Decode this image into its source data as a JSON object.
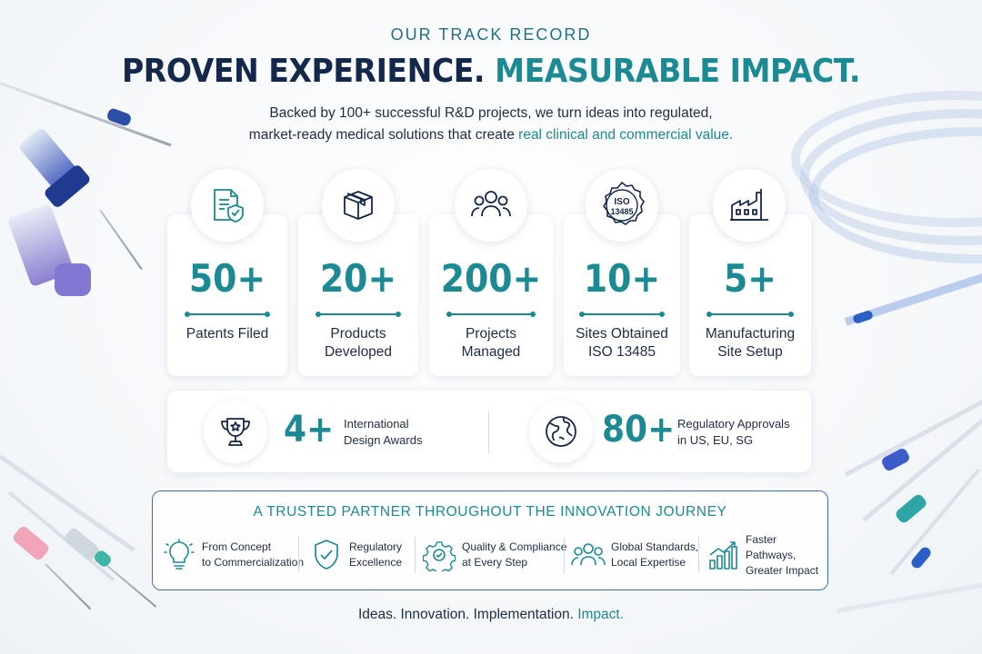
{
  "header": {
    "eyebrow": "OUR TRACK RECORD",
    "headline_dark": "PROVEN EXPERIENCE.",
    "headline_teal": "MEASURABLE IMPACT.",
    "intro_line1": "Backed by 100+ successful R&D projects, we turn ideas into regulated,",
    "intro_line2_plain": "market-ready medical solutions that create",
    "intro_line2_accent": "real clinical and commercial value."
  },
  "stats": [
    {
      "icon": "document-shield-icon",
      "value": "50+",
      "label_line1": "Patents Filed",
      "label_line2": ""
    },
    {
      "icon": "box-icon",
      "value": "20+",
      "label_line1": "Products",
      "label_line2": "Developed"
    },
    {
      "icon": "people-icon",
      "value": "200+",
      "label_line1": "Projects",
      "label_line2": "Managed"
    },
    {
      "icon": "iso-seal-icon",
      "icon_text_1": "ISO",
      "icon_text_2": "13485",
      "value": "10+",
      "label_line1": "Sites Obtained",
      "label_line2": "ISO 13485"
    },
    {
      "icon": "factory-icon",
      "value": "5+",
      "label_line1": "Manufacturing",
      "label_line2": "Site Setup"
    }
  ],
  "highlights": [
    {
      "icon": "trophy-icon",
      "value": "4+",
      "label_line1": "International",
      "label_line2": "Design Awards"
    },
    {
      "icon": "globe-icon",
      "value": "80+",
      "label_line1": "Regulatory Approvals",
      "label_line2": "in US, EU, SG"
    }
  ],
  "partner": {
    "title": "A TRUSTED PARTNER THROUGHOUT THE INNOVATION JOURNEY",
    "pillars": [
      {
        "icon": "lightbulb-icon",
        "line1": "From Concept",
        "line2": "to Commercialization"
      },
      {
        "icon": "shield-check-icon",
        "line1": "Regulatory",
        "line2": "Excellence"
      },
      {
        "icon": "gear-icon",
        "line1": "Quality & Compliance",
        "line2": "at Every Step"
      },
      {
        "icon": "team-icon",
        "line1": "Global Standards,",
        "line2": "Local Expertise"
      },
      {
        "icon": "growth-chart-icon",
        "line1": "Faster Pathways,",
        "line2": "Greater Impact"
      }
    ]
  },
  "tagline": {
    "plain": "Ideas. Innovation. Implementation. ",
    "accent": "Impact."
  },
  "colors": {
    "navy": "#14284b",
    "teal": "#1b8a93",
    "border_blue": "#3a6fb3",
    "text": "#1e2c44"
  }
}
